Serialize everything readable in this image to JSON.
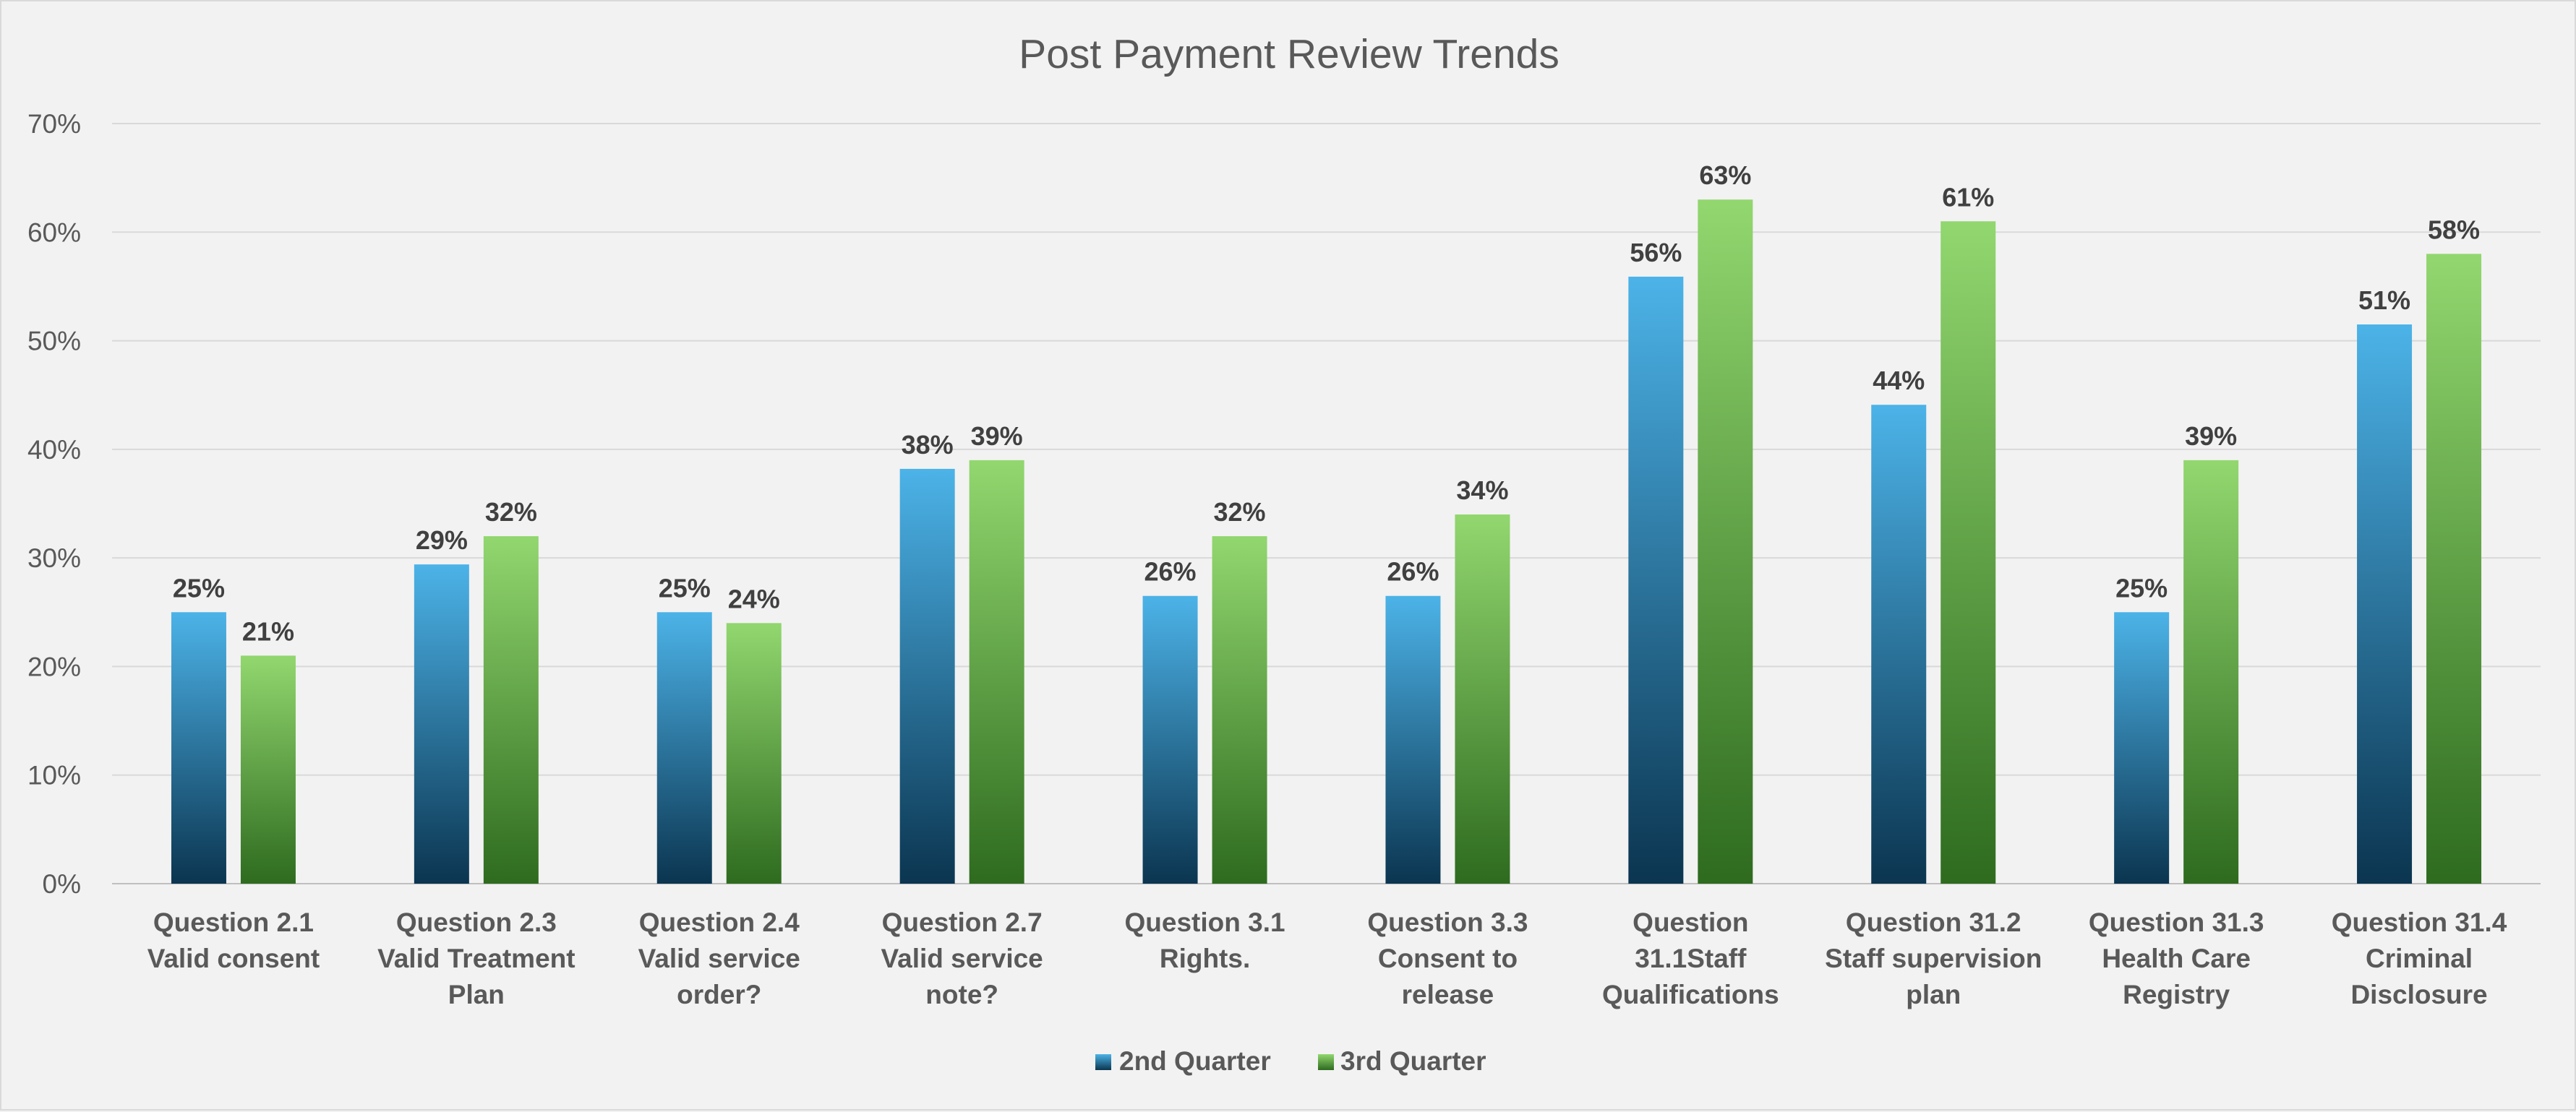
{
  "chart_data": {
    "type": "bar",
    "title": "Post Payment Review Trends",
    "xlabel": "",
    "ylabel": "",
    "ylim": [
      0,
      70
    ],
    "y_ticks": [
      "0%",
      "10%",
      "20%",
      "30%",
      "40%",
      "50%",
      "60%",
      "70%"
    ],
    "grid": true,
    "legend_position": "bottom",
    "categories": [
      [
        "Question 2.1",
        "Valid consent"
      ],
      [
        "Question 2.3",
        "Valid Treatment",
        "Plan"
      ],
      [
        "Question 2.4",
        "Valid service",
        "order?"
      ],
      [
        "Question 2.7",
        "Valid service",
        "note?"
      ],
      [
        "Question 3.1",
        "Rights."
      ],
      [
        "Question 3.3",
        "Consent to",
        "release"
      ],
      [
        "Question",
        "31.1Staff",
        "Qualifications"
      ],
      [
        "Question 31.2",
        "Staff supervision",
        "plan"
      ],
      [
        "Question 31.3",
        "Health Care",
        "Registry"
      ],
      [
        "Question 31.4",
        "Criminal",
        "Disclosure"
      ]
    ],
    "series": [
      {
        "name": "2nd Quarter",
        "color_top": "#4cb3e8",
        "color_bottom": "#0b3550",
        "values": [
          25,
          29.4,
          25,
          38.2,
          26.5,
          26.5,
          55.9,
          44.1,
          25,
          51.5
        ],
        "labels": [
          "25%",
          "29%",
          "25%",
          "38%",
          "26%",
          "26%",
          "56%",
          "44%",
          "25%",
          "51%"
        ]
      },
      {
        "name": "3rd Quarter",
        "color_top": "#92d76f",
        "color_bottom": "#2e6b1f",
        "values": [
          21,
          32,
          24,
          39,
          32,
          34,
          63,
          61,
          39,
          58
        ],
        "labels": [
          "21%",
          "32%",
          "24%",
          "39%",
          "32%",
          "34%",
          "63%",
          "61%",
          "39%",
          "58%"
        ]
      }
    ]
  }
}
